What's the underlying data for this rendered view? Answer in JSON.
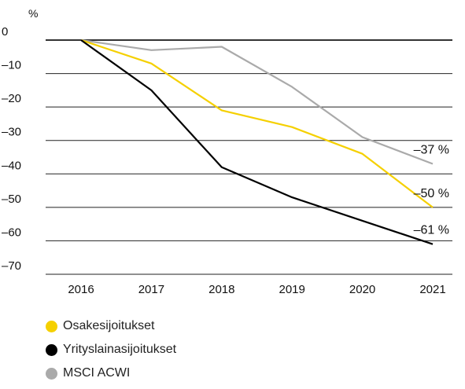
{
  "chart_data": {
    "type": "line",
    "unit_label": "%",
    "x": [
      "2016",
      "2017",
      "2018",
      "2019",
      "2020",
      "2021"
    ],
    "yticks": [
      0,
      -10,
      -20,
      -30,
      -40,
      -50,
      -60,
      -70
    ],
    "ytick_labels": [
      "0",
      "–10",
      "–20",
      "–30",
      "–40",
      "–50",
      "–60",
      "–70"
    ],
    "ylim": [
      -70,
      0
    ],
    "grid": true,
    "legend_position": "bottom-left",
    "series": [
      {
        "name": "Osakesijoitukset",
        "color": "#f5d000",
        "values": [
          0,
          -7,
          -21,
          -26,
          -34,
          -50
        ],
        "end_label": "–50 %"
      },
      {
        "name": "Yrityslainasijoitukset",
        "color": "#000000",
        "values": [
          0,
          -15,
          -38,
          -47,
          -54,
          -61
        ],
        "end_label": "–61 %"
      },
      {
        "name": "MSCI ACWI",
        "color": "#aaaaaa",
        "values": [
          0,
          -3,
          -2,
          -14,
          -29,
          -37
        ],
        "end_label": "–37 %"
      }
    ]
  }
}
